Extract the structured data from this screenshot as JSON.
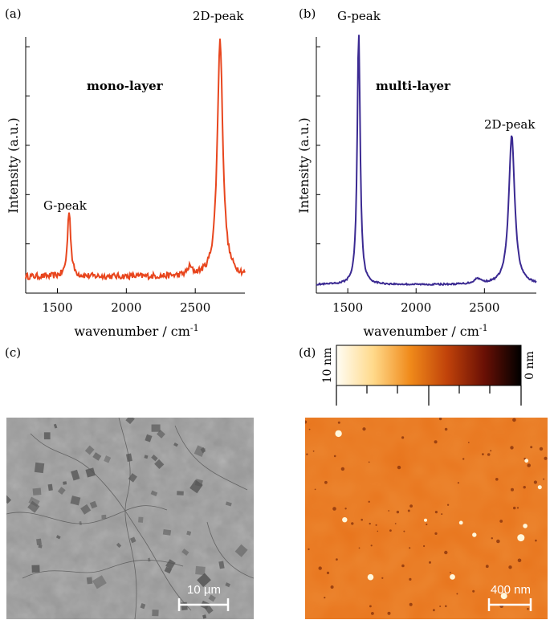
{
  "panels": {
    "a_label": "(a)",
    "b_label": "(b)",
    "c_label": "(c)",
    "d_label": "(d)"
  },
  "chart_data": [
    {
      "type": "line",
      "id": "a",
      "title": "mono-layer",
      "xlabel": "wavenumber   / cm",
      "xlabel_sup": "-1",
      "ylabel": "Intensity (a.u.)",
      "xlim": [
        1270,
        2860
      ],
      "xticks": [
        1500,
        2000,
        2500
      ],
      "ylim": [
        0,
        1.0
      ],
      "color": "#e8461e",
      "baseline": 0.04,
      "noise": 0.012,
      "peaks": [
        {
          "center": 1585,
          "height": 0.26,
          "width": 14,
          "label": "G-peak"
        },
        {
          "center": 2460,
          "height": 0.03,
          "width": 20,
          "label": ""
        },
        {
          "center": 2680,
          "height": 0.93,
          "width": 24,
          "label": "2D-peak"
        }
      ],
      "annotations": [
        "2D-peak",
        "G-peak"
      ]
    },
    {
      "type": "line",
      "id": "b",
      "title": "multi-layer",
      "xlabel": "wavenumber   / cm",
      "xlabel_sup": "-1",
      "ylabel": "Intensity (a.u.)",
      "xlim": [
        1270,
        2880
      ],
      "xticks": [
        1500,
        2000,
        2500
      ],
      "ylim": [
        0,
        1.0
      ],
      "color": "#3b2a92",
      "baseline": 0.02,
      "noise": 0.003,
      "peaks": [
        {
          "center": 1580,
          "height": 0.98,
          "width": 13,
          "label": "G-peak"
        },
        {
          "center": 2450,
          "height": 0.02,
          "width": 30,
          "label": ""
        },
        {
          "center": 2700,
          "height": 0.58,
          "width": 26,
          "label": "2D-peak"
        }
      ],
      "annotations": [
        "G-peak",
        "2D-peak"
      ]
    }
  ],
  "colorbar": {
    "top_label": "10 nm",
    "bottom_label": "0 nm",
    "colors": [
      "#fffdf4",
      "#ffd98a",
      "#f08a1a",
      "#c0420a",
      "#6a1005",
      "#000000"
    ]
  },
  "image_c": {
    "description_tag": "micrograph",
    "scalebar": "10 µm",
    "bg_color": "#9a9a9a"
  },
  "image_d": {
    "scalebar": "400 nm",
    "bg_color": "#e8761e"
  }
}
